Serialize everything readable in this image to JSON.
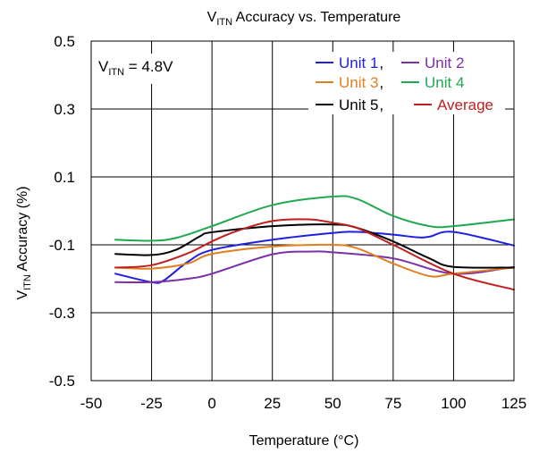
{
  "chart_data": {
    "type": "line",
    "title": {
      "main": "V",
      "sub": "ITN",
      "rest": " Accuracy vs. Temperature"
    },
    "xlabel": "Temperature (°C)",
    "ylabel": {
      "main": "V",
      "sub": "ITN",
      "rest": " Accuracy (%)"
    },
    "annotation": {
      "main": "V",
      "sub": "ITN",
      "rest": " = 4.8V"
    },
    "xlim": [
      -50,
      125
    ],
    "ylim": [
      -0.5,
      0.5
    ],
    "x_ticks": [
      -50,
      -25,
      0,
      25,
      50,
      75,
      100,
      125
    ],
    "y_ticks": [
      -0.5,
      -0.3,
      -0.1,
      0.1,
      0.3,
      0.5
    ],
    "x_tick_labels": [
      "-50",
      "-25",
      "0",
      "25",
      "50",
      "75",
      "100",
      "125"
    ],
    "y_tick_labels": [
      "-0.5",
      "-0.3",
      "-0.1",
      "0.1",
      "0.3",
      "0.5"
    ],
    "grid": true,
    "legend_position": "top-right",
    "legend_separator": ",",
    "series": [
      {
        "name": "Unit 1",
        "color": "#1f1fe0",
        "x": [
          -40,
          -25,
          -20,
          -10,
          0,
          25,
          50,
          60,
          75,
          85,
          90,
          100,
          125
        ],
        "y": [
          -0.185,
          -0.21,
          -0.205,
          -0.15,
          -0.115,
          -0.085,
          -0.065,
          -0.062,
          -0.07,
          -0.078,
          -0.076,
          -0.062,
          -0.102
        ]
      },
      {
        "name": "Unit 2",
        "color": "#7b2fa8",
        "x": [
          -40,
          -25,
          -10,
          0,
          25,
          40,
          50,
          75,
          100,
          125
        ],
        "y": [
          -0.21,
          -0.21,
          -0.2,
          -0.185,
          -0.128,
          -0.12,
          -0.122,
          -0.14,
          -0.185,
          -0.165
        ]
      },
      {
        "name": "Unit 3",
        "color": "#e07f1f",
        "x": [
          -40,
          -25,
          -10,
          0,
          25,
          50,
          60,
          75,
          90,
          100,
          125
        ],
        "y": [
          -0.167,
          -0.17,
          -0.155,
          -0.127,
          -0.105,
          -0.1,
          -0.11,
          -0.155,
          -0.192,
          -0.185,
          -0.167
        ]
      },
      {
        "name": "Unit 4",
        "color": "#1fa84f",
        "x": [
          -40,
          -25,
          -15,
          0,
          25,
          50,
          60,
          75,
          90,
          100,
          125
        ],
        "y": [
          -0.085,
          -0.088,
          -0.08,
          -0.045,
          0.017,
          0.042,
          0.035,
          -0.015,
          -0.045,
          -0.045,
          -0.025
        ]
      },
      {
        "name": "Unit 5",
        "color": "#000000",
        "x": [
          -40,
          -25,
          -15,
          -5,
          0,
          25,
          50,
          60,
          75,
          90,
          100,
          125
        ],
        "y": [
          -0.127,
          -0.13,
          -0.115,
          -0.075,
          -0.063,
          -0.045,
          -0.04,
          -0.05,
          -0.09,
          -0.14,
          -0.165,
          -0.167
        ]
      },
      {
        "name": "Average",
        "color": "#c01f1f",
        "x": [
          -40,
          -25,
          -10,
          0,
          10,
          25,
          40,
          50,
          60,
          75,
          100,
          125
        ],
        "y": [
          -0.167,
          -0.16,
          -0.125,
          -0.09,
          -0.06,
          -0.03,
          -0.025,
          -0.035,
          -0.05,
          -0.1,
          -0.185,
          -0.232
        ]
      }
    ]
  }
}
